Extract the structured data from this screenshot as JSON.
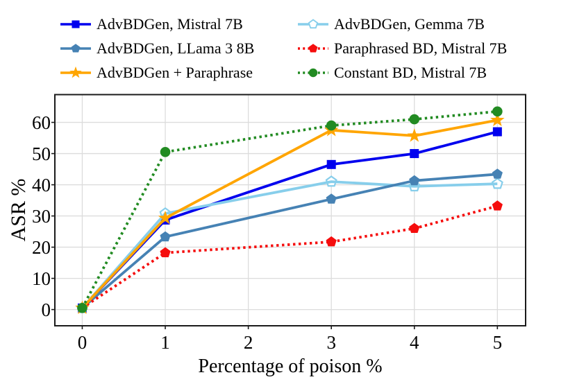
{
  "figure": {
    "background": "#ffffff"
  },
  "chart_data": {
    "type": "line",
    "title": "",
    "xlabel": "Percentage of poison %",
    "ylabel": "ASR %",
    "x": [
      0,
      1,
      3,
      4,
      5
    ],
    "xticks": [
      "0",
      "1",
      "2",
      "3",
      "4",
      "5"
    ],
    "xtick_values": [
      0,
      1,
      2,
      3,
      4,
      5
    ],
    "yticks": [
      "0",
      "10",
      "20",
      "30",
      "40",
      "50",
      "60"
    ],
    "ytick_values": [
      0,
      10,
      20,
      30,
      40,
      50,
      60
    ],
    "xlim": [
      -0.33,
      5.34
    ],
    "ylim": [
      -5.2,
      68.9
    ],
    "grid": true,
    "legend": {
      "position": "top",
      "columns": 2
    },
    "colors": {
      "grid": "#dcdcdc",
      "spine": "#1a1a1a",
      "text": "#000000"
    },
    "series": [
      {
        "name": "AdvBDGen, Mistral 7B",
        "color": "#0000ee",
        "marker": "square",
        "linestyle": "solid",
        "values": [
          0.5,
          28.7,
          46.5,
          50.0,
          57.0
        ]
      },
      {
        "name": "AdvBDGen, Gemma 7B",
        "color": "#87ceeb",
        "marker": "pentagon-open",
        "linestyle": "solid",
        "values": [
          0.5,
          30.8,
          41.0,
          39.5,
          40.3
        ]
      },
      {
        "name": "AdvBDGen, LLama 3 8B",
        "color": "#4682b4",
        "marker": "pentagon",
        "linestyle": "solid",
        "values": [
          0.5,
          23.3,
          35.4,
          41.3,
          43.4
        ]
      },
      {
        "name": "Paraphrased BD, Mistral 7B",
        "color": "#f50d0d",
        "marker": "pentagon",
        "linestyle": "dotted",
        "values": [
          0.5,
          18.2,
          21.7,
          26.0,
          33.2
        ]
      },
      {
        "name": "AdvBDGen + Paraphrase",
        "color": "#ffa500",
        "marker": "star",
        "linestyle": "solid",
        "values": [
          0.5,
          29.3,
          57.5,
          55.7,
          60.7
        ]
      },
      {
        "name": "Constant BD, Mistral 7B",
        "color": "#228b22",
        "marker": "circle",
        "linestyle": "dotted",
        "values": [
          0.5,
          50.5,
          59.0,
          61.0,
          63.5
        ]
      }
    ]
  }
}
